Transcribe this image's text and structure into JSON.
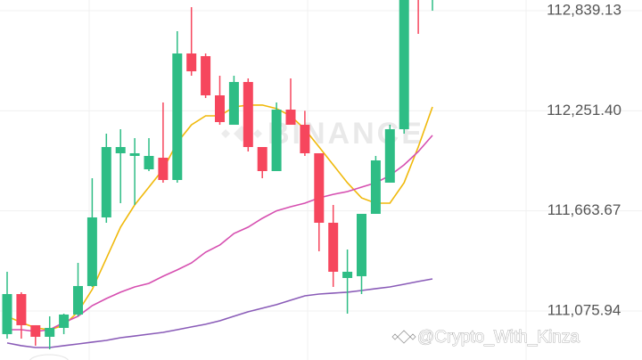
{
  "chart_data": {
    "type": "candlestick",
    "open": [
      110939.9,
      111175.3,
      110992.2,
      110924.2,
      110976.5,
      111055.0,
      111222.4,
      111625.3,
      112002.0,
      111986.3,
      111907.8,
      111975.8,
      111845.0,
      112588.0,
      112572.3,
      112342.1,
      112169.4,
      112420.5,
      112038.6,
      111897.3,
      112258.3,
      112169.4,
      112002.0,
      111593.9,
      111269.5,
      111280.0,
      111646.2,
      111829.3,
      112143.2,
      113058.9,
      112954.2
    ],
    "high": [
      111306.1,
      111185.8,
      110992.2,
      111044.5,
      111060.2,
      111358.4,
      111855.5,
      112117.1,
      112143.2,
      112090.9,
      112090.9,
      112300.2,
      112718.8,
      112860.0,
      112588.0,
      112457.2,
      112457.2,
      112441.5,
      112038.6,
      112300.2,
      112441.5,
      112251.4,
      112002.0,
      111698.5,
      111436.9,
      111646.2,
      111986.3,
      112169.4,
      113111.2,
      113080.0,
      113090.0
    ],
    "low": [
      110913.7,
      110913.7,
      110871.9,
      110850.9,
      110939.9,
      111044.5,
      111217.2,
      111593.9,
      111709.0,
      111698.5,
      111897.3,
      111829.3,
      111829.3,
      112457.2,
      112326.4,
      112169.4,
      112169.4,
      112012.4,
      111855.5,
      111897.3,
      112169.4,
      111986.3,
      111426.5,
      111217.2,
      111060.2,
      111175.3,
      111646.2,
      111829.3,
      112117.1,
      112703.1,
      112839.1
    ],
    "close": [
      111175.3,
      110992.2,
      110924.2,
      110976.5,
      111055.0,
      111222.4,
      111625.3,
      112038.6,
      112038.6,
      112002.0,
      111986.3,
      111845.0,
      112588.0,
      112483.3,
      112342.1,
      112185.1,
      112420.5,
      112038.6,
      111897.3,
      112258.3,
      112169.4,
      112002.0,
      111593.9,
      111306.1,
      111306.1,
      111646.2,
      111960.1,
      112143.2,
      113111.2,
      112954.2,
      113058.9
    ],
    "up_color": "#2ebd85",
    "down_color": "#f6465d",
    "series": [
      {
        "color": "#f0b90b",
        "values": [
          111045,
          111008,
          110977,
          110966,
          110992,
          111071,
          111202,
          111385,
          111568,
          111699,
          111803,
          111908,
          112065,
          112169,
          112222,
          112222,
          112274,
          112285,
          112285,
          112264,
          112222,
          112143,
          112039,
          111934,
          111829,
          111740,
          111709,
          111709,
          111829,
          112039,
          112274
        ]
      },
      {
        "color": "#d64fb0",
        "values": [
          110966,
          110966,
          110956,
          110966,
          111008,
          111045,
          111107,
          111149,
          111186,
          111217,
          111238,
          111280,
          111317,
          111358,
          111421,
          111463,
          111531,
          111568,
          111620,
          111664,
          111688,
          111709,
          111740,
          111761,
          111777,
          111803,
          111829,
          111871,
          111934,
          112012,
          112107
        ]
      },
      {
        "color": "#8a5cb8",
        "values": [
          110888,
          110872,
          110861,
          110861,
          110872,
          110882,
          110893,
          110903,
          110919,
          110929,
          110940,
          110950,
          110966,
          110982,
          110998,
          111018,
          111045,
          111071,
          111092,
          111113,
          111139,
          111165,
          111175,
          111181,
          111186,
          111196,
          111207,
          111217,
          111233,
          111249,
          111264
        ]
      }
    ],
    "ylim": [
      110788,
      112902
    ],
    "yticks": [
      {
        "value": 112839.13,
        "label": "112,839.13"
      },
      {
        "value": 112251.4,
        "label": "112,251.40"
      },
      {
        "value": 111663.67,
        "label": "111,663.67"
      },
      {
        "value": 111075.94,
        "label": "111,075.94"
      }
    ],
    "grid": true,
    "watermark": "BINANCE",
    "credit": "@Crypto_With_Kinza"
  }
}
